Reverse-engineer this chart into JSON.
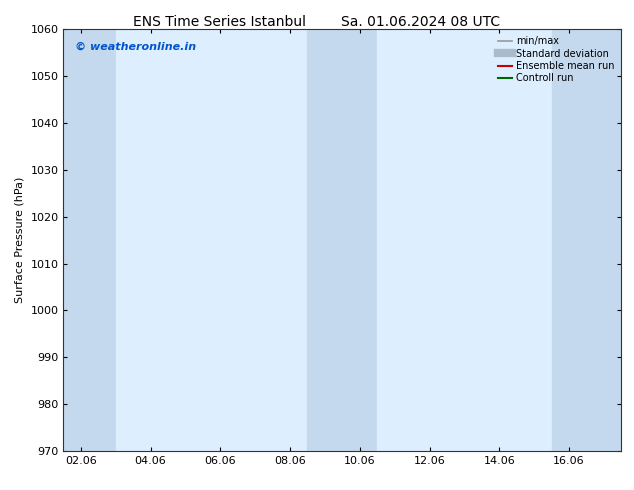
{
  "title_left": "ENS Time Series Istanbul",
  "title_right": "Sa. 01.06.2024 08 UTC",
  "ylabel": "Surface Pressure (hPa)",
  "ylim": [
    970,
    1060
  ],
  "yticks": [
    970,
    980,
    990,
    1000,
    1010,
    1020,
    1030,
    1040,
    1050,
    1060
  ],
  "xtick_labels": [
    "02.06",
    "04.06",
    "06.06",
    "08.06",
    "10.06",
    "12.06",
    "14.06",
    "16.06"
  ],
  "xtick_positions": [
    1,
    3,
    5,
    7,
    9,
    11,
    13,
    15
  ],
  "xlim": [
    0.5,
    16.5
  ],
  "plot_bg_color": "#ddeeff",
  "shaded_bands": [
    {
      "x_start": 0.5,
      "x_end": 2.0,
      "color": "#c5d9ee"
    },
    {
      "x_start": 2.0,
      "x_end": 2.5,
      "color": "#ddeeff"
    },
    {
      "x_start": 7.5,
      "x_end": 9.5,
      "color": "#c5d9ee"
    },
    {
      "x_start": 9.5,
      "x_end": 10.5,
      "color": "#ddeeff"
    },
    {
      "x_start": 14.5,
      "x_end": 16.5,
      "color": "#c5d9ee"
    }
  ],
  "watermark_text": "© weatheronline.in",
  "watermark_color": "#0055cc",
  "legend_items": [
    {
      "label": "min/max",
      "color": "#999999",
      "lw": 1.2
    },
    {
      "label": "Standard deviation",
      "color": "#aabbcc",
      "lw": 6
    },
    {
      "label": "Ensemble mean run",
      "color": "#cc0000",
      "lw": 1.5
    },
    {
      "label": "Controll run",
      "color": "#006600",
      "lw": 1.5
    }
  ],
  "background_color": "#ffffff",
  "title_fontsize": 10,
  "axis_fontsize": 8,
  "tick_fontsize": 8
}
